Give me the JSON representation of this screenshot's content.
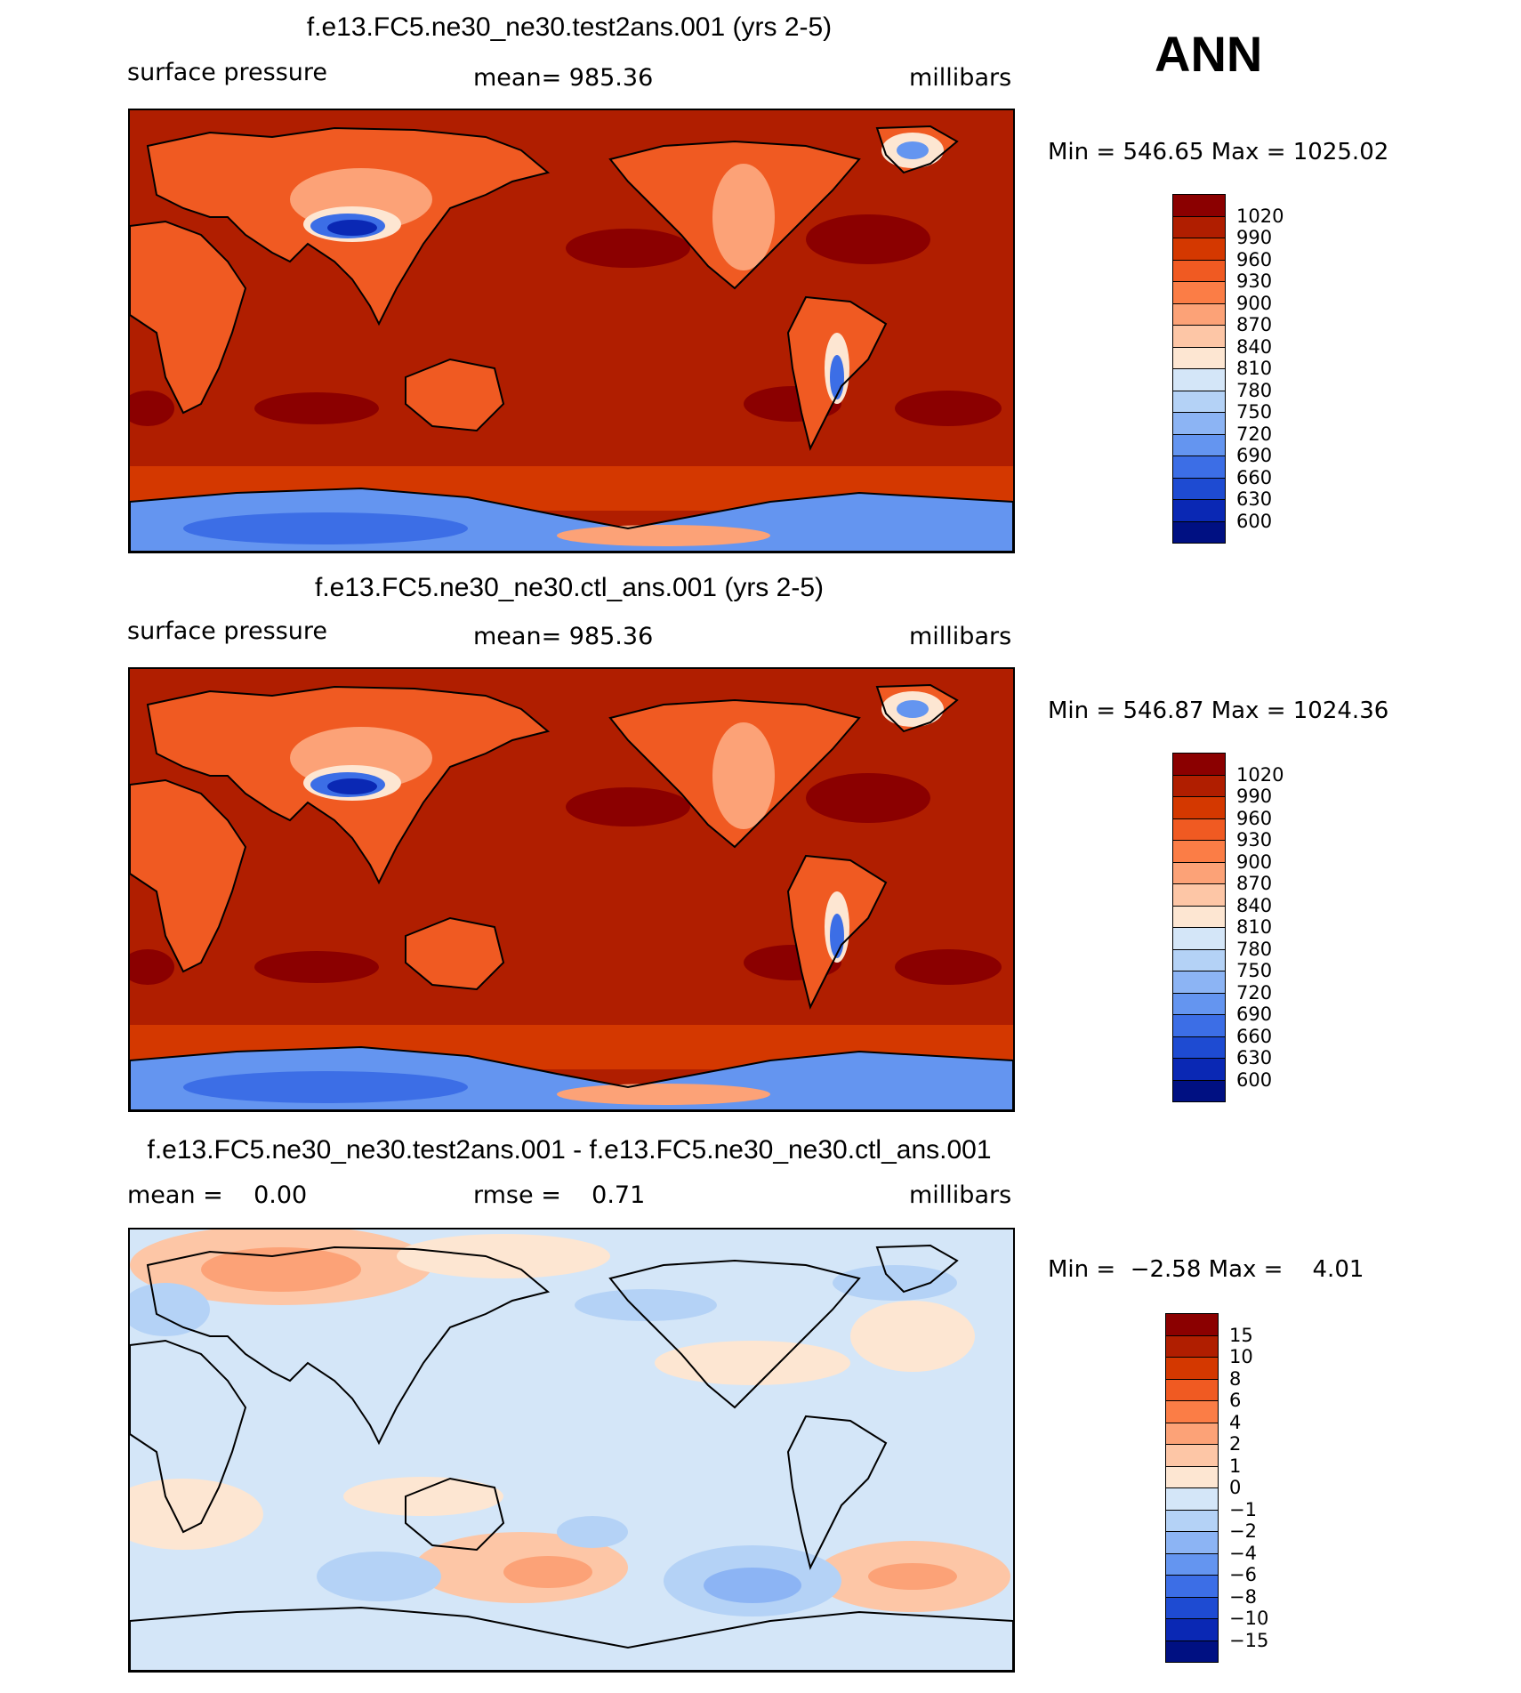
{
  "season": "ANN",
  "units": "millibars",
  "panels": [
    {
      "title": "f.e13.FC5.ne30_ne30.test2ans.001 (yrs 2-5)",
      "left_label": "surface pressure",
      "center_label": "mean= 985.36",
      "right_label": "millibars",
      "minmax": "Min = 546.65 Max = 1025.02"
    },
    {
      "title": "f.e13.FC5.ne30_ne30.ctl_ans.001 (yrs 2-5)",
      "left_label": "surface pressure",
      "center_label": "mean= 985.36",
      "right_label": "millibars",
      "minmax": "Min = 546.87 Max = 1024.36"
    },
    {
      "title": "f.e13.FC5.ne30_ne30.test2ans.001 - f.e13.FC5.ne30_ne30.ctl_ans.001",
      "left_label": "mean =    0.00",
      "center_label": "rmse =    0.71",
      "right_label": "millibars",
      "minmax": "Min =  −2.58 Max =    4.01"
    }
  ],
  "colorbars": {
    "pressure": {
      "labels": [
        "1020",
        "990",
        "960",
        "930",
        "900",
        "870",
        "840",
        "810",
        "780",
        "750",
        "720",
        "690",
        "660",
        "630",
        "600"
      ],
      "colors": [
        "#8b0000",
        "#b01e00",
        "#d43800",
        "#f05a22",
        "#fb7d46",
        "#fca277",
        "#fdc6a6",
        "#fde6d2",
        "#d4e6f8",
        "#b4d2f6",
        "#8cb4f4",
        "#6495f0",
        "#3c6ee6",
        "#1e4bd2",
        "#0a28b4",
        "#001082"
      ]
    },
    "difference": {
      "labels": [
        "15",
        "10",
        "8",
        "6",
        "4",
        "2",
        "1",
        "0",
        "−1",
        "−2",
        "−4",
        "−6",
        "−8",
        "−10",
        "−15"
      ],
      "colors": [
        "#8b0000",
        "#b01e00",
        "#d43800",
        "#f05a22",
        "#fb7d46",
        "#fca277",
        "#fdc6a6",
        "#fde6d2",
        "#d4e6f8",
        "#b4d2f6",
        "#8cb4f4",
        "#6495f0",
        "#3c6ee6",
        "#1e4bd2",
        "#0a28b4",
        "#001082"
      ]
    }
  },
  "map_colors": {
    "ocean_pressure": "#b01e00",
    "ocean_pressure_high": "#8b0000",
    "southern_band": "#d43800",
    "land_mid": "#f05a22",
    "land_light": "#fca277",
    "land_pale": "#fde6d2",
    "highland_blue": "#3c6ee6",
    "highland_deep": "#0a28b4",
    "antarctica_blue": "#6495f0",
    "diff_base": "#d4e6f8",
    "diff_pos1": "#fde6d2",
    "diff_pos2": "#fdc6a6",
    "diff_pos3": "#fca277",
    "diff_neg1": "#b4d2f6",
    "diff_neg2": "#8cb4f4"
  }
}
